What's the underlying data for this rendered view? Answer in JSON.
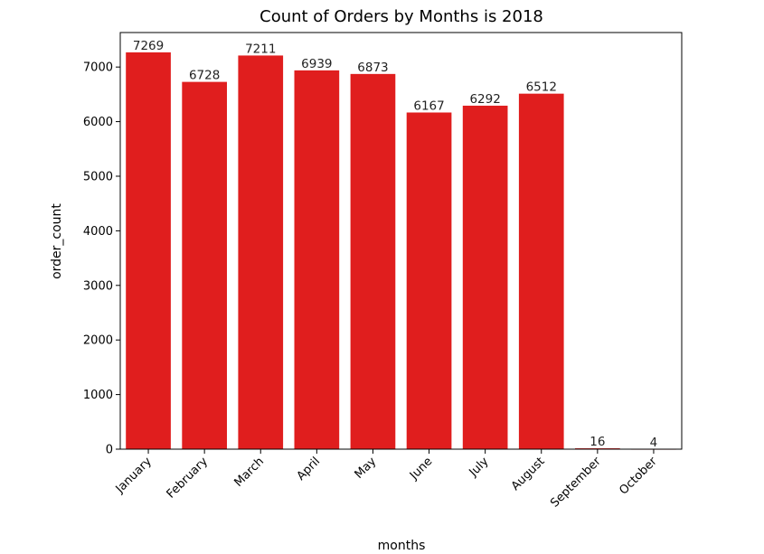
{
  "chart_data": {
    "type": "bar",
    "title": "Count of Orders by Months is 2018",
    "xlabel": "months",
    "ylabel": "order_count",
    "categories": [
      "January",
      "February",
      "March",
      "April",
      "May",
      "June",
      "July",
      "August",
      "September",
      "October"
    ],
    "values": [
      7269,
      6728,
      7211,
      6939,
      6873,
      6167,
      6292,
      6512,
      16,
      4
    ],
    "data_labels": [
      "7269",
      "6728",
      "7211",
      "6939",
      "6873",
      "6167",
      "6292",
      "6512",
      "16",
      "4"
    ],
    "ylim": [
      0,
      7632
    ],
    "yticks": [
      0,
      1000,
      2000,
      3000,
      4000,
      5000,
      6000,
      7000
    ],
    "ytick_labels": [
      "0",
      "1000",
      "2000",
      "3000",
      "4000",
      "5000",
      "6000",
      "7000"
    ],
    "grid": false,
    "bar_color": "#e01e1e",
    "x_tick_rotation_deg": 45
  }
}
